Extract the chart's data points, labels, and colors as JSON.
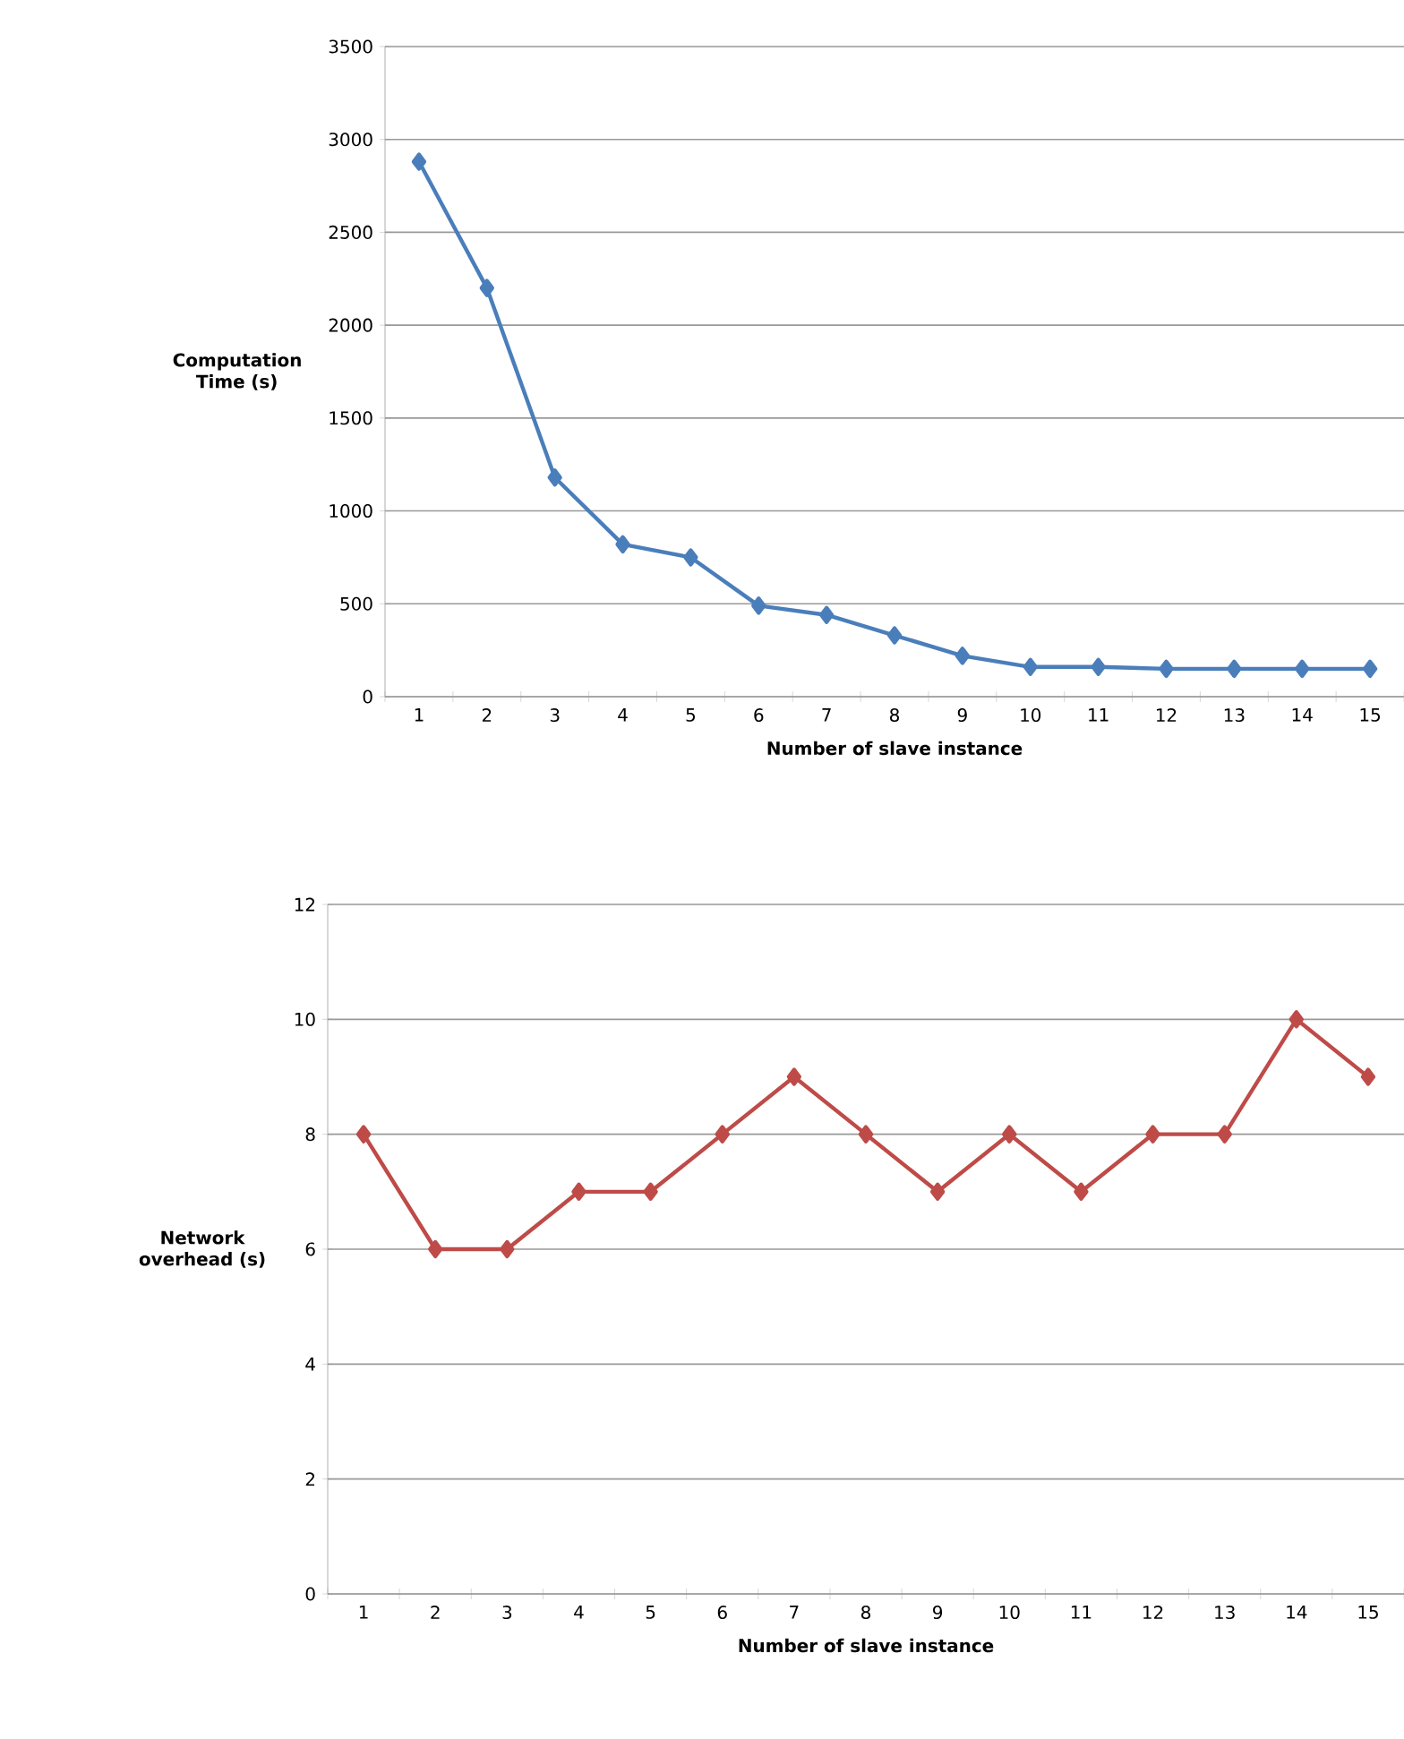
{
  "chart_data": [
    {
      "type": "line",
      "xlabel": "Number of slave instance",
      "ylabel": "Computation Time (s)",
      "categories": [
        "1",
        "2",
        "3",
        "4",
        "5",
        "6",
        "7",
        "8",
        "9",
        "10",
        "11",
        "12",
        "13",
        "14",
        "15"
      ],
      "values": [
        2880,
        2200,
        1180,
        820,
        750,
        490,
        440,
        330,
        220,
        160,
        160,
        150,
        150,
        150,
        150
      ],
      "color": "#4a7ebb",
      "ylim": [
        0,
        3500
      ],
      "yticks": [
        0,
        500,
        1000,
        1500,
        2000,
        2500,
        3000,
        3500
      ],
      "grid": "y",
      "marker": "diamond"
    },
    {
      "type": "line",
      "xlabel": "Number of slave instance",
      "ylabel": "Network overhead (s)",
      "categories": [
        "1",
        "2",
        "3",
        "4",
        "5",
        "6",
        "7",
        "8",
        "9",
        "10",
        "11",
        "12",
        "13",
        "14",
        "15"
      ],
      "values": [
        8,
        6,
        6,
        7,
        7,
        8,
        9,
        8,
        7,
        8,
        7,
        8,
        8,
        10,
        9
      ],
      "color": "#be4b48",
      "ylim": [
        0,
        12
      ],
      "yticks": [
        0,
        2,
        4,
        6,
        8,
        10,
        12
      ],
      "grid": "y",
      "marker": "diamond"
    }
  ]
}
